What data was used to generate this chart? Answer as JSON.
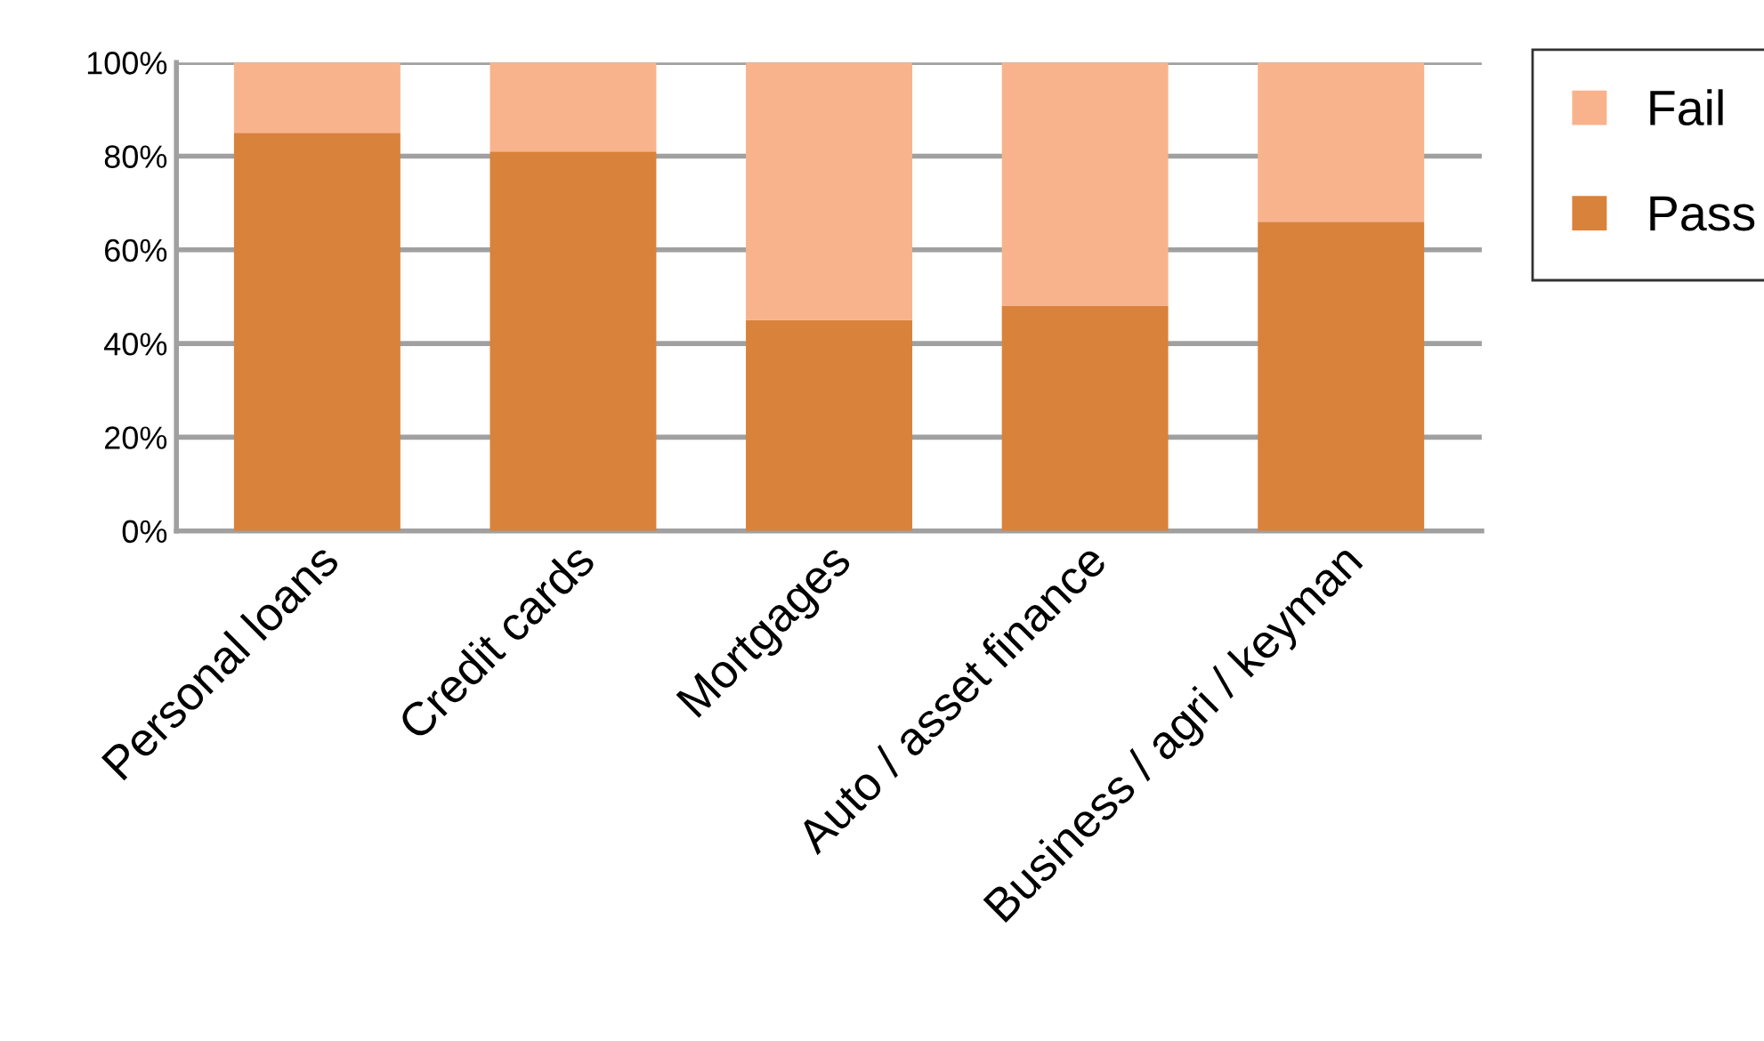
{
  "chart_data": {
    "type": "bar",
    "stacked": true,
    "categories": [
      "Personal loans",
      "Credit cards",
      "Mortgages",
      "Auto / asset finance",
      "Business / agri / keyman"
    ],
    "series": [
      {
        "name": "Pass",
        "color": "#d9823b",
        "values": [
          85,
          81,
          45,
          48,
          66
        ]
      },
      {
        "name": "Fail",
        "color": "#f9b38c",
        "values": [
          15,
          19,
          55,
          52,
          34
        ]
      }
    ],
    "ylim": [
      0,
      100
    ],
    "yticks": [
      {
        "value": 0,
        "label": "0%"
      },
      {
        "value": 20,
        "label": "20%"
      },
      {
        "value": 40,
        "label": "40%"
      },
      {
        "value": 60,
        "label": "60%"
      },
      {
        "value": 80,
        "label": "80%"
      },
      {
        "value": 100,
        "label": "100%"
      }
    ],
    "grid": "y",
    "legend": "right"
  }
}
